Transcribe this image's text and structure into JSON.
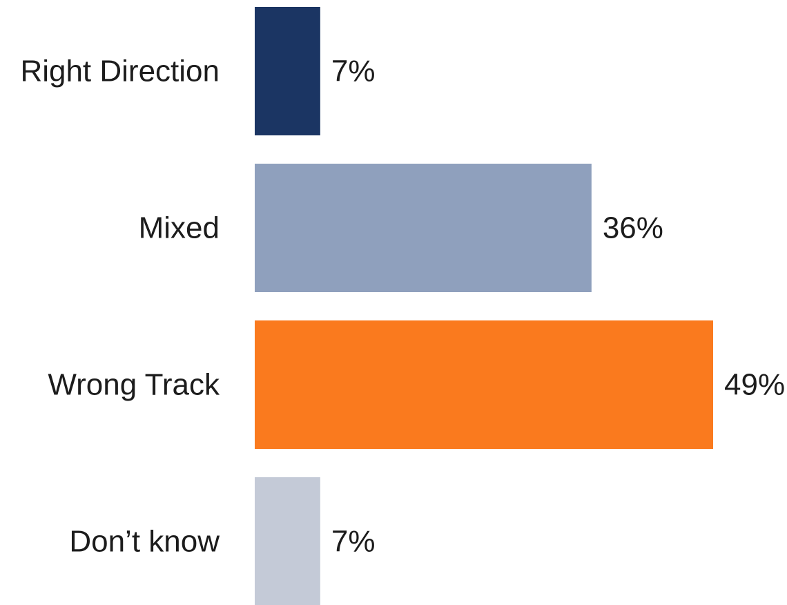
{
  "chart_data": {
    "type": "bar",
    "orientation": "horizontal",
    "categories": [
      "Right Direction",
      "Mixed",
      "Wrong Track",
      "Don’t know"
    ],
    "values": [
      7,
      36,
      49,
      7
    ],
    "value_labels": [
      "7%",
      "36%",
      "49%",
      "7%"
    ],
    "colors": [
      "#1b3563",
      "#8fa0bd",
      "#fa7a1e",
      "#c4cad7"
    ],
    "title": "",
    "xlabel": "",
    "ylabel": "",
    "xlim": [
      0,
      49
    ],
    "grid": false,
    "legend": "none",
    "unit": "%"
  }
}
